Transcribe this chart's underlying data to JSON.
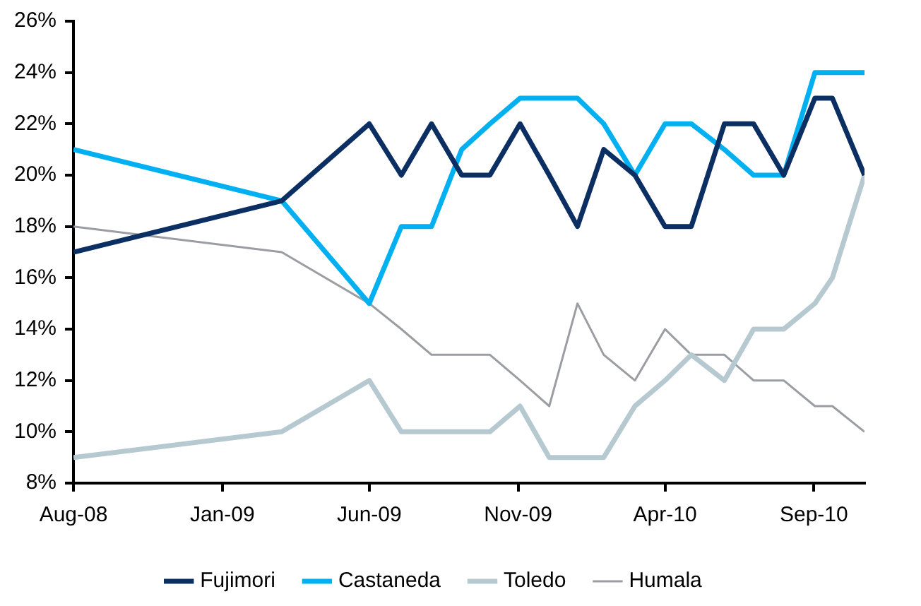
{
  "chart_data": {
    "type": "line",
    "x": [
      "2008-08-01",
      "2009-03-03",
      "2009-06-01",
      "2009-07-04",
      "2009-08-04",
      "2009-09-04",
      "2009-10-03",
      "2009-11-03",
      "2009-12-03",
      "2010-01-01",
      "2010-01-28",
      "2010-03-01",
      "2010-04-01",
      "2010-04-28",
      "2010-06-01",
      "2010-07-01",
      "2010-08-01",
      "2010-09-02",
      "2010-09-20",
      "2010-10-23"
    ],
    "series": [
      {
        "name": "Fujimori",
        "color": "#0c2f63",
        "values": [
          17,
          19,
          22,
          20,
          22,
          20,
          20,
          22,
          20,
          18,
          21,
          20,
          18,
          18,
          22,
          22,
          20,
          23,
          23,
          20
        ]
      },
      {
        "name": "Castaneda",
        "color": "#00b0f0",
        "values": [
          21,
          19,
          15,
          18,
          18,
          21,
          22,
          23,
          23,
          23,
          22,
          20,
          22,
          22,
          21,
          20,
          20,
          24,
          24,
          24
        ]
      },
      {
        "name": "Toledo",
        "color": "#b7c9d0",
        "values": [
          9,
          10,
          12,
          10,
          10,
          10,
          10,
          11,
          9,
          9,
          9,
          11,
          12,
          13,
          12,
          14,
          14,
          15,
          16,
          20
        ]
      },
      {
        "name": "Humala",
        "color": "#9a9ea3",
        "values": [
          18,
          17,
          15,
          14,
          13,
          13,
          13,
          12,
          11,
          15,
          13,
          12,
          14,
          13,
          13,
          12,
          12,
          11,
          11,
          10
        ]
      }
    ],
    "xlim": [
      "2008-08-01",
      "2010-10-23"
    ],
    "xticks": [
      {
        "value": "2008-08-01",
        "label": "Aug-08"
      },
      {
        "value": "2009-01-01",
        "label": "Jan-09"
      },
      {
        "value": "2009-06-01",
        "label": "Jun-09"
      },
      {
        "value": "2009-11-01",
        "label": "Nov-09"
      },
      {
        "value": "2010-04-01",
        "label": "Apr-10"
      },
      {
        "value": "2010-09-01",
        "label": "Sep-10"
      }
    ],
    "ylim": [
      8,
      26
    ],
    "yticks": [
      {
        "value": 8,
        "label": "8%"
      },
      {
        "value": 10,
        "label": "10%"
      },
      {
        "value": 12,
        "label": "12%"
      },
      {
        "value": 14,
        "label": "14%"
      },
      {
        "value": 16,
        "label": "16%"
      },
      {
        "value": 18,
        "label": "18%"
      },
      {
        "value": 20,
        "label": "20%"
      },
      {
        "value": 22,
        "label": "22%"
      },
      {
        "value": 24,
        "label": "24%"
      },
      {
        "value": 26,
        "label": "26%"
      }
    ],
    "grid": false,
    "legend": "bottom",
    "marker": "none",
    "line_style": "solid"
  }
}
